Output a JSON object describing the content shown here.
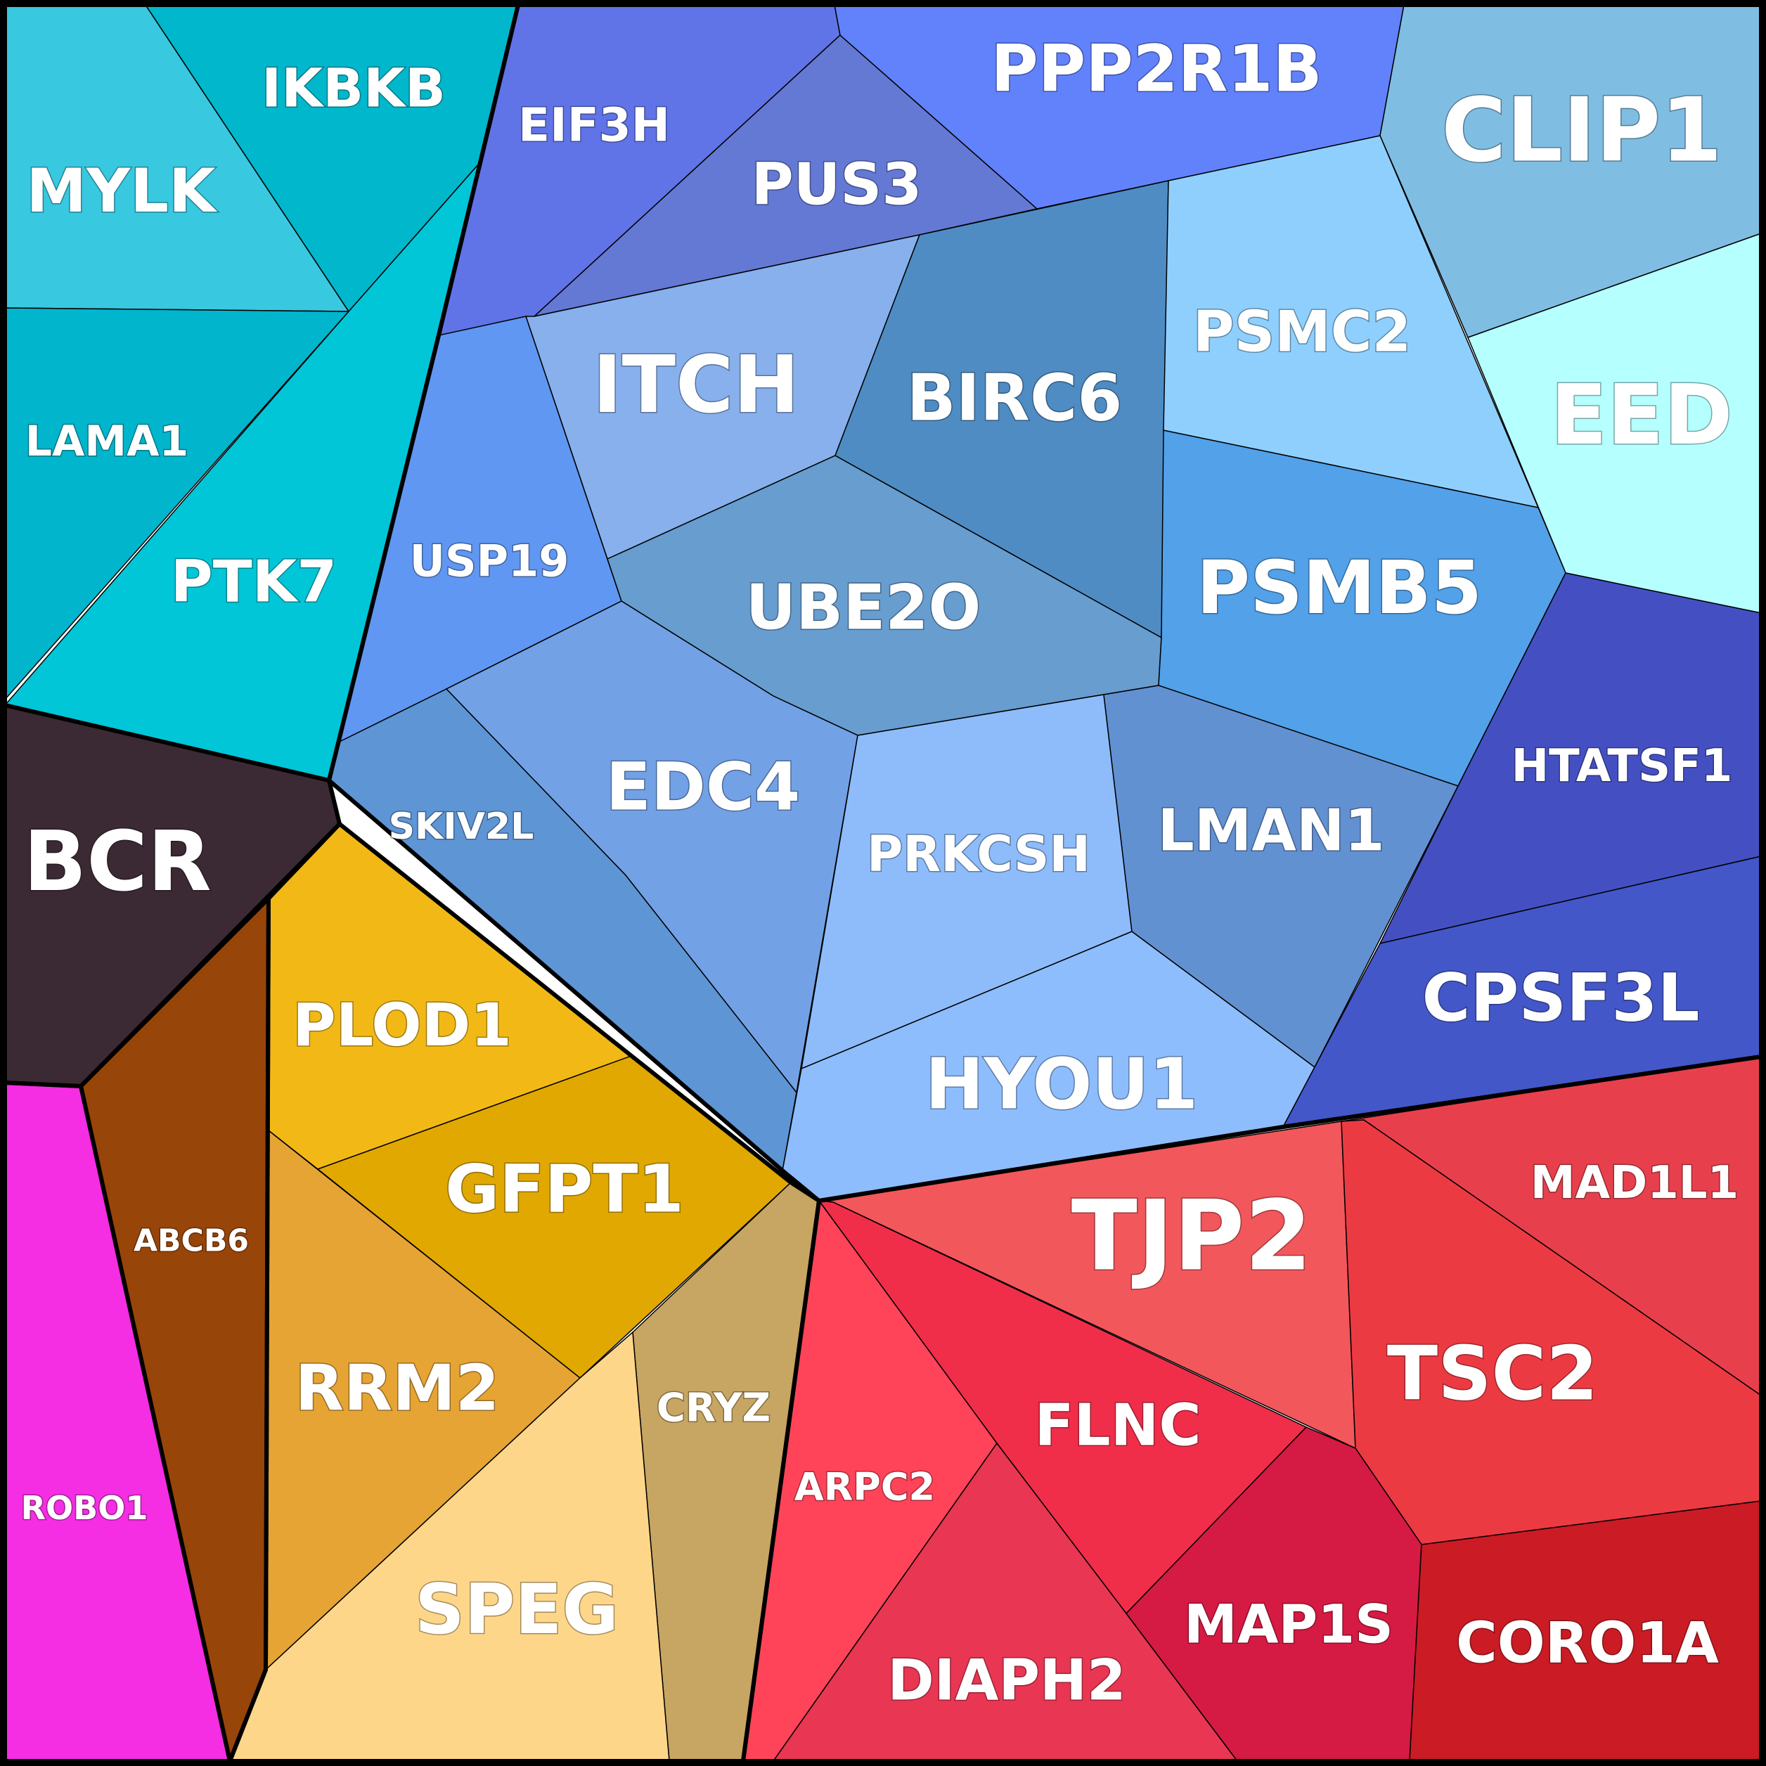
{
  "chart_data": {
    "type": "voronoi-treemap",
    "groups": [
      {
        "color": "#00bcd4",
        "cells": [
          {
            "label": "MYLK",
            "color": "#38c8e0"
          },
          {
            "label": "IKBKB",
            "color": "#00b7cc"
          },
          {
            "label": "LAMA1",
            "color": "#00b5cc"
          },
          {
            "label": "PTK7",
            "color": "#00c6d8"
          }
        ]
      },
      {
        "color": "#5e8ef0",
        "cells": [
          {
            "label": "EIF3H",
            "color": "#6074e8"
          },
          {
            "label": "PUS3",
            "color": "#6479d4"
          },
          {
            "label": "PPP2R1B",
            "color": "#6282fc"
          },
          {
            "label": "CLIP1",
            "color": "#80bde3"
          },
          {
            "label": "EED",
            "color": "#b5fffe"
          },
          {
            "label": "ITCH",
            "color": "#87b0ec"
          },
          {
            "label": "BIRC6",
            "color": "#4f8cc3"
          },
          {
            "label": "PSMC2",
            "color": "#8fcffd"
          },
          {
            "label": "USP19",
            "color": "#6097f2"
          },
          {
            "label": "UBE2O",
            "color": "#679dcf"
          },
          {
            "label": "PSMB5",
            "color": "#52a1e9"
          },
          {
            "label": "EDC4",
            "color": "#72a1e6"
          },
          {
            "label": "SKIV2L",
            "color": "#5e95d5"
          },
          {
            "label": "PRKCSH",
            "color": "#8ebcfa"
          },
          {
            "label": "LMAN1",
            "color": "#6291d2"
          },
          {
            "label": "HTATSF1",
            "color": "#4450c2"
          },
          {
            "label": "HYOU1",
            "color": "#8dbdfd"
          },
          {
            "label": "CPSF3L",
            "color": "#4357c9"
          }
        ]
      },
      {
        "color": "#3b2a33",
        "cells": [
          {
            "label": "BCR",
            "color": "#3b2a33"
          }
        ]
      },
      {
        "color": "#e0a800",
        "cells": [
          {
            "label": "PLOD1",
            "color": "#f2b916"
          },
          {
            "label": "GFPT1",
            "color": "#e1a802"
          },
          {
            "label": "RRM2",
            "color": "#e5a434"
          },
          {
            "label": "CRYZ",
            "color": "#c7a562"
          },
          {
            "label": "SPEG",
            "color": "#fdd68a"
          }
        ]
      },
      {
        "color": "#99460a",
        "cells": [
          {
            "label": "ABCB6",
            "color": "#98450a"
          }
        ]
      },
      {
        "color": "#f52de3",
        "cells": [
          {
            "label": "ROBO1",
            "color": "#f52de3"
          }
        ]
      },
      {
        "color": "#e83040",
        "cells": [
          {
            "label": "TJP2",
            "color": "#f2575b"
          },
          {
            "label": "MAD1L1",
            "color": "#e7404c"
          },
          {
            "label": "TSC2",
            "color": "#ec3a43"
          },
          {
            "label": "FLNC",
            "color": "#f02e4a"
          },
          {
            "label": "ARPC2",
            "color": "#ff4459"
          },
          {
            "label": "DIAPH2",
            "color": "#e83653"
          },
          {
            "label": "MAP1S",
            "color": "#d51a43"
          },
          {
            "label": "CORO1A",
            "color": "#cb1b24"
          }
        ]
      }
    ]
  }
}
